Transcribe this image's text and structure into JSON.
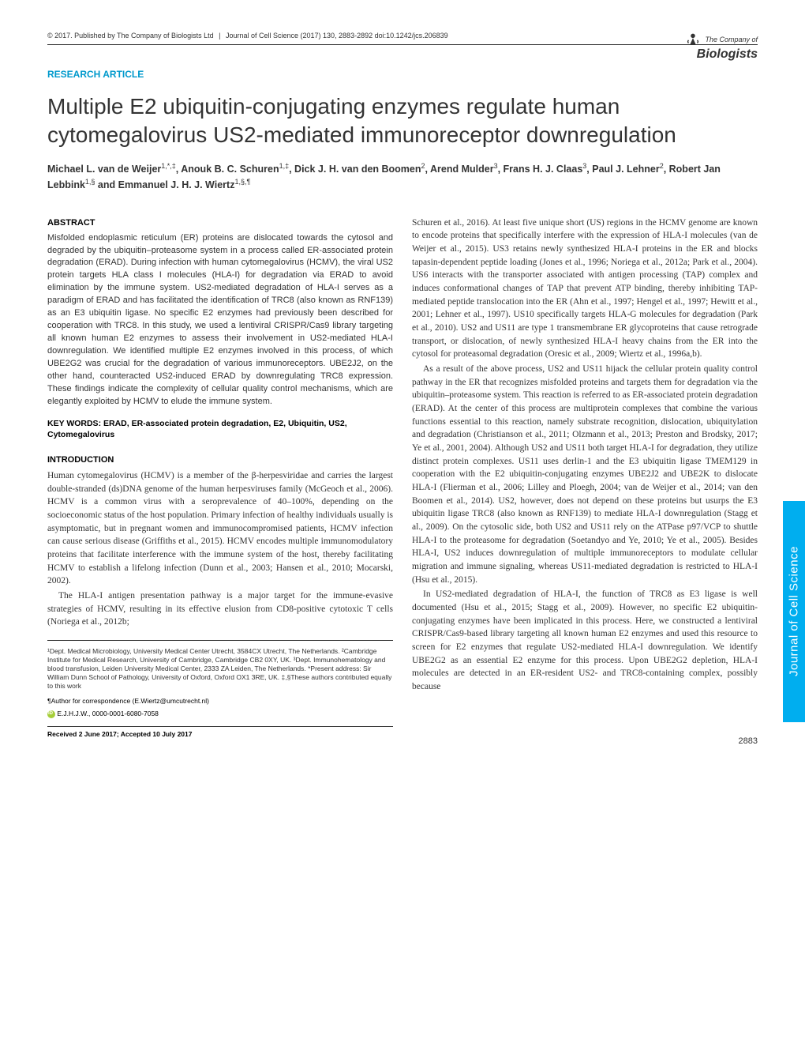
{
  "header": {
    "copyright": "© 2017. Published by The Company of Biologists Ltd",
    "journal": "Journal of Cell Science (2017) 130, 2883-2892 doi:10.1242/jcs.206839"
  },
  "logo": {
    "company": "The Company of",
    "biologists": "Biologists"
  },
  "article_type": "RESEARCH ARTICLE",
  "title": "Multiple E2 ubiquitin-conjugating enzymes regulate human cytomegalovirus US2-mediated immunoreceptor downregulation",
  "authors_html": "Michael L. van de Weijer<sup>1,*,‡</sup>, Anouk B. C. Schuren<sup>1,‡</sup>, Dick J. H. van den Boomen<sup>2</sup>, Arend Mulder<sup>3</sup>, Frans H. J. Claas<sup>3</sup>, Paul J. Lehner<sup>2</sup>, Robert Jan Lebbink<sup>1,§</sup> and Emmanuel J. H. J. Wiertz<sup>1,§,¶</sup>",
  "abstract_heading": "ABSTRACT",
  "abstract": "Misfolded endoplasmic reticulum (ER) proteins are dislocated towards the cytosol and degraded by the ubiquitin–proteasome system in a process called ER-associated protein degradation (ERAD). During infection with human cytomegalovirus (HCMV), the viral US2 protein targets HLA class I molecules (HLA-I) for degradation via ERAD to avoid elimination by the immune system. US2-mediated degradation of HLA-I serves as a paradigm of ERAD and has facilitated the identification of TRC8 (also known as RNF139) as an E3 ubiquitin ligase. No specific E2 enzymes had previously been described for cooperation with TRC8. In this study, we used a lentiviral CRISPR/Cas9 library targeting all known human E2 enzymes to assess their involvement in US2-mediated HLA-I downregulation. We identified multiple E2 enzymes involved in this process, of which UBE2G2 was crucial for the degradation of various immunoreceptors. UBE2J2, on the other hand, counteracted US2-induced ERAD by downregulating TRC8 expression. These findings indicate the complexity of cellular quality control mechanisms, which are elegantly exploited by HCMV to elude the immune system.",
  "keywords_label": "KEY WORDS:",
  "keywords": "ERAD, ER-associated protein degradation, E2, Ubiquitin, US2, Cytomegalovirus",
  "intro_heading": "INTRODUCTION",
  "intro_p1": "Human cytomegalovirus (HCMV) is a member of the β-herpesviridae and carries the largest double-stranded (ds)DNA genome of the human herpesviruses family (McGeoch et al., 2006). HCMV is a common virus with a seroprevalence of 40–100%, depending on the socioeconomic status of the host population. Primary infection of healthy individuals usually is asymptomatic, but in pregnant women and immunocompromised patients, HCMV infection can cause serious disease (Griffiths et al., 2015). HCMV encodes multiple immunomodulatory proteins that facilitate interference with the immune system of the host, thereby facilitating HCMV to establish a lifelong infection (Dunn et al., 2003; Hansen et al., 2010; Mocarski, 2002).",
  "intro_p2": "The HLA-I antigen presentation pathway is a major target for the immune-evasive strategies of HCMV, resulting in its effective elusion from CD8-positive cytotoxic T cells (Noriega et al., 2012b;",
  "col2_p1": "Schuren et al., 2016). At least five unique short (US) regions in the HCMV genome are known to encode proteins that specifically interfere with the expression of HLA-I molecules (van de Weijer et al., 2015). US3 retains newly synthesized HLA-I proteins in the ER and blocks tapasin-dependent peptide loading (Jones et al., 1996; Noriega et al., 2012a; Park et al., 2004). US6 interacts with the transporter associated with antigen processing (TAP) complex and induces conformational changes of TAP that prevent ATP binding, thereby inhibiting TAP-mediated peptide translocation into the ER (Ahn et al., 1997; Hengel et al., 1997; Hewitt et al., 2001; Lehner et al., 1997). US10 specifically targets HLA-G molecules for degradation (Park et al., 2010). US2 and US11 are type 1 transmembrane ER glycoproteins that cause retrograde transport, or dislocation, of newly synthesized HLA-I heavy chains from the ER into the cytosol for proteasomal degradation (Oresic et al., 2009; Wiertz et al., 1996a,b).",
  "col2_p2": "As a result of the above process, US2 and US11 hijack the cellular protein quality control pathway in the ER that recognizes misfolded proteins and targets them for degradation via the ubiquitin–proteasome system. This reaction is referred to as ER-associated protein degradation (ERAD). At the center of this process are multiprotein complexes that combine the various functions essential to this reaction, namely substrate recognition, dislocation, ubiquitylation and degradation (Christianson et al., 2011; Olzmann et al., 2013; Preston and Brodsky, 2017; Ye et al., 2001, 2004). Although US2 and US11 both target HLA-I for degradation, they utilize distinct protein complexes. US11 uses derlin-1 and the E3 ubiquitin ligase TMEM129 in cooperation with the E2 ubiquitin-conjugating enzymes UBE2J2 and UBE2K to dislocate HLA-I (Flierman et al., 2006; Lilley and Ploegh, 2004; van de Weijer et al., 2014; van den Boomen et al., 2014). US2, however, does not depend on these proteins but usurps the E3 ubiquitin ligase TRC8 (also known as RNF139) to mediate HLA-I downregulation (Stagg et al., 2009). On the cytosolic side, both US2 and US11 rely on the ATPase p97/VCP to shuttle HLA-I to the proteasome for degradation (Soetandyo and Ye, 2010; Ye et al., 2005). Besides HLA-I, US2 induces downregulation of multiple immunoreceptors to modulate cellular migration and immune signaling, whereas US11-mediated degradation is restricted to HLA-I (Hsu et al., 2015).",
  "col2_p3": "In US2-mediated degradation of HLA-I, the function of TRC8 as E3 ligase is well documented (Hsu et al., 2015; Stagg et al., 2009). However, no specific E2 ubiquitin-conjugating enzymes have been implicated in this process. Here, we constructed a lentiviral CRISPR/Cas9-based library targeting all known human E2 enzymes and used this resource to screen for E2 enzymes that regulate US2-mediated HLA-I downregulation. We identify UBE2G2 as an essential E2 enzyme for this process. Upon UBE2G2 depletion, HLA-I molecules are detected in an ER-resident US2- and TRC8-containing complex, possibly because",
  "affiliations": "¹Dept. Medical Microbiology, University Medical Center Utrecht, 3584CX Utrecht, The Netherlands. ²Cambridge Institute for Medical Research, University of Cambridge, Cambridge CB2 0XY, UK. ³Dept. Immunohematology and blood transfusion, Leiden University Medical Center, 2333 ZA Leiden, The Netherlands. *Present address: Sir William Dunn School of Pathology, University of Oxford, Oxford OX1 3RE, UK. ‡,§These authors contributed equally to this work",
  "correspondence": "¶Author for correspondence (E.Wiertz@umcutrecht.nl)",
  "orcid_text": "E.J.H.J.W., 0000-0001-6080-7058",
  "dates": "Received 2 June 2017; Accepted 10 July 2017",
  "side_tab": "Journal of Cell Science",
  "page_number": "2883",
  "colors": {
    "accent": "#0099cc",
    "side_tab": "#00aeef",
    "text": "#333333",
    "orcid": "#a6ce39"
  }
}
